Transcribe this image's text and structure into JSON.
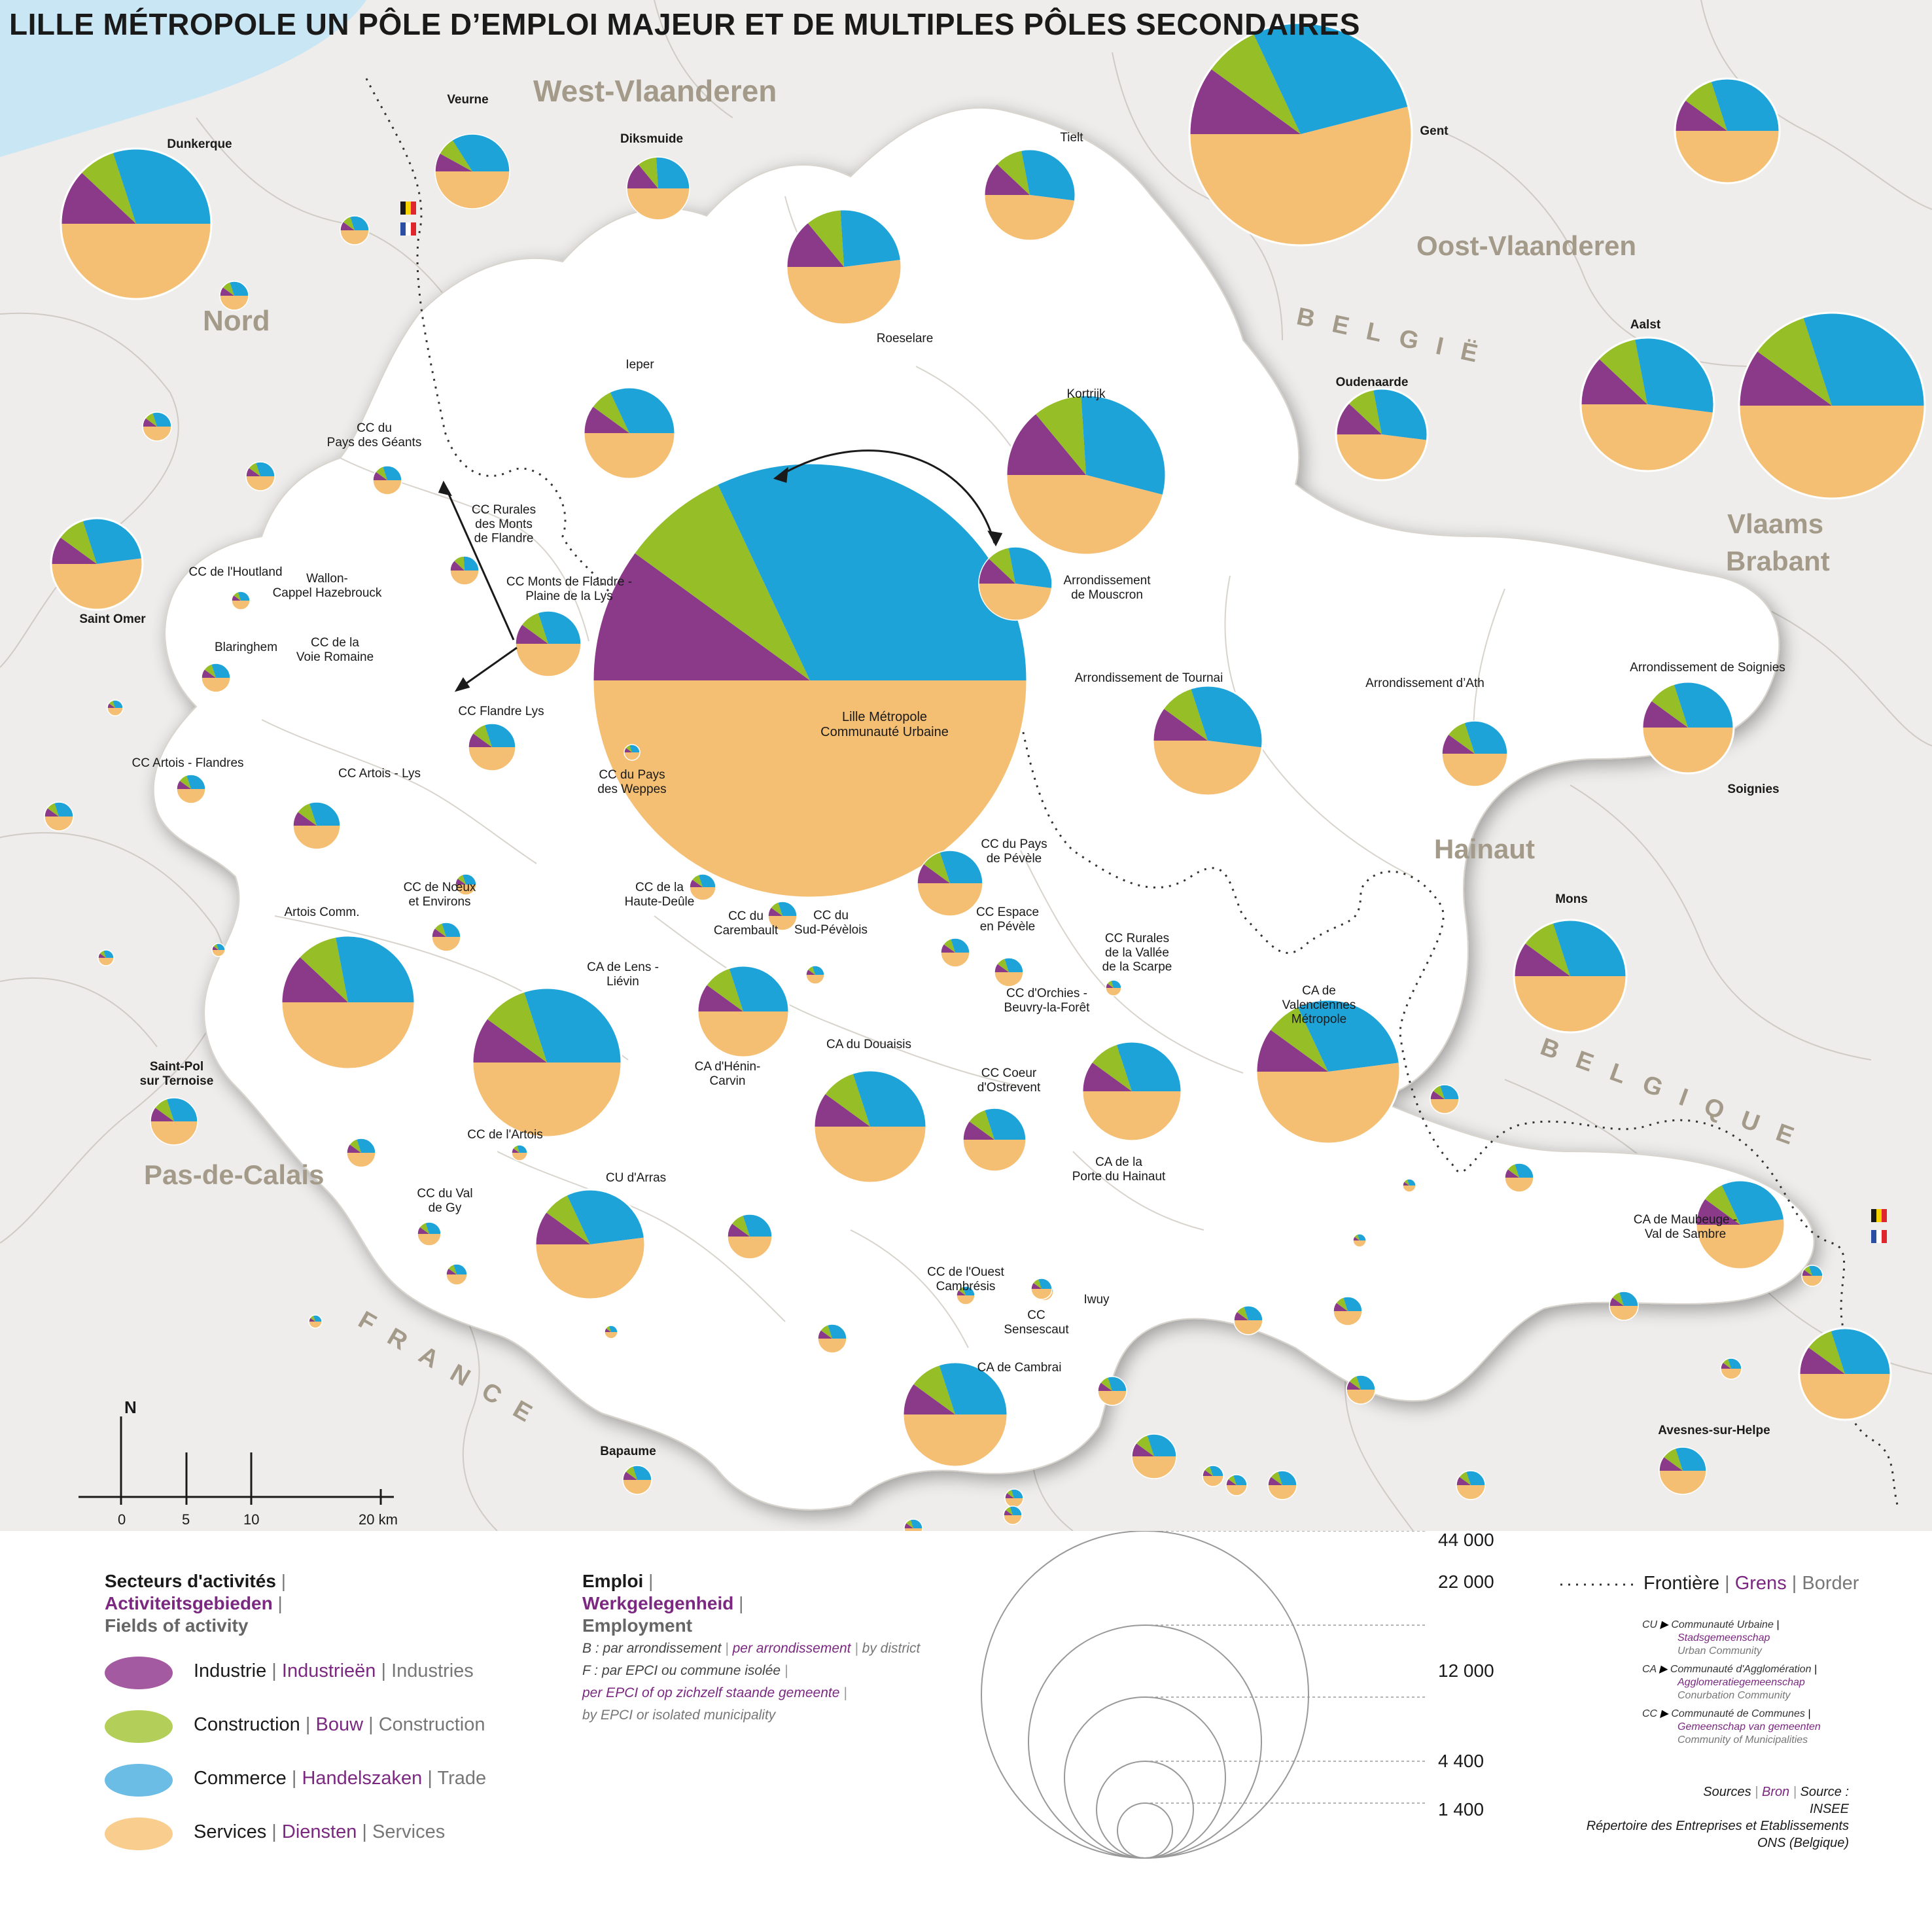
{
  "title": "LILLE MÉTROPOLE UN PÔLE D’EMPLOI MAJEUR ET DE MULTIPLES PÔLES SECONDAIRES",
  "colors": {
    "industry": "#8b3a8a",
    "construction": "#96be26",
    "trade": "#1ea3d8",
    "services": "#f5bf73",
    "border": "#333333",
    "land": "#eeedeb",
    "study": "#ffffff",
    "sea": "#c9e6f4"
  },
  "regions": [
    "West-Vlaanderen",
    "Oost-Vlaanderen",
    "Nord",
    "Vlaams",
    "Brabant",
    "Hainaut",
    "Pas-de-Calais"
  ],
  "countries": {
    "be_nl": "BELGIË",
    "be_fr": "BELGIQUE",
    "fr": "FRANCE"
  },
  "north": "N",
  "scale_ticks": [
    "0",
    "5",
    "10",
    "20 km"
  ],
  "poles": [
    {
      "name": "Lille Métropole\nCommunauté Urbaine",
      "bold": false,
      "shares": [
        10,
        8,
        32,
        50
      ]
    },
    {
      "name": "Gent",
      "bold": true,
      "shares": [
        10,
        8,
        28,
        54
      ]
    },
    {
      "name": "Dunkerque",
      "bold": true,
      "shares": [
        12,
        8,
        30,
        50
      ]
    },
    {
      "name": "Veurne",
      "bold": true,
      "shares": [
        8,
        8,
        34,
        50
      ]
    },
    {
      "name": "Diksmuide",
      "bold": true,
      "shares": [
        14,
        10,
        26,
        50
      ]
    },
    {
      "name": "Tielt",
      "bold": false,
      "shares": [
        12,
        10,
        30,
        48
      ]
    },
    {
      "name": "Roeselare",
      "bold": false,
      "shares": [
        14,
        10,
        24,
        52
      ]
    },
    {
      "name": "Ieper",
      "bold": false,
      "shares": [
        10,
        8,
        32,
        50
      ]
    },
    {
      "name": "Kortrijk",
      "bold": false,
      "shares": [
        14,
        10,
        30,
        46
      ]
    },
    {
      "name": "Oudenaarde",
      "bold": true,
      "shares": [
        12,
        10,
        30,
        48
      ]
    },
    {
      "name": "Aalst",
      "bold": true,
      "shares": [
        12,
        10,
        30,
        48
      ]
    },
    {
      "name": "Arrondissement\nde Mouscron",
      "bold": false,
      "shares": [
        12,
        10,
        30,
        48
      ]
    },
    {
      "name": "Arrondissement de Tournai",
      "bold": false,
      "shares": [
        10,
        10,
        32,
        48
      ]
    },
    {
      "name": "Arrondissement d’Ath",
      "bold": false,
      "shares": [
        10,
        10,
        30,
        50
      ]
    },
    {
      "name": "Arrondissement de Soignies",
      "bold": false,
      "shares": [
        10,
        10,
        30,
        50
      ]
    },
    {
      "name": "Soignies",
      "bold": true,
      "shares": []
    },
    {
      "name": "Saint Omer",
      "bold": true,
      "shares": [
        10,
        10,
        28,
        52
      ]
    },
    {
      "name": "Dunkerque",
      "bold": true,
      "shares": []
    },
    {
      "name": "CC du\nPays des Géants",
      "bold": false,
      "shares": [
        10,
        10,
        30,
        50
      ]
    },
    {
      "name": "CC Rurales\ndes Monts\nde Flandre",
      "bold": false,
      "shares": [
        12,
        12,
        26,
        50
      ]
    },
    {
      "name": "CC Monts de Flandre -\nPlaine de la Lys",
      "bold": false,
      "shares": [
        10,
        10,
        30,
        50
      ]
    },
    {
      "name": "CC de l'Houtland",
      "bold": false,
      "shares": [
        10,
        10,
        30,
        50
      ]
    },
    {
      "name": "Wallon-\nCappel Hazebrouck",
      "bold": false,
      "shares": []
    },
    {
      "name": "Blaringhem",
      "bold": false,
      "shares": []
    },
    {
      "name": "CC de la\nVoie Romaine",
      "bold": false,
      "shares": []
    },
    {
      "name": "CC Flandre Lys",
      "bold": false,
      "shares": [
        10,
        10,
        30,
        50
      ]
    },
    {
      "name": "CC Artois - Flandres",
      "bold": false,
      "shares": [
        10,
        10,
        30,
        50
      ]
    },
    {
      "name": "CC Artois - Lys",
      "bold": false,
      "shares": [
        10,
        10,
        30,
        50
      ]
    },
    {
      "name": "CC du Pays\ndes Weppes",
      "bold": false,
      "shares": [
        10,
        10,
        30,
        50
      ]
    },
    {
      "name": "CC du Pays\nde Pévèle",
      "bold": false,
      "shares": [
        10,
        10,
        30,
        50
      ]
    },
    {
      "name": "CC de Nœux\net Environs",
      "bold": false,
      "shares": [
        10,
        10,
        30,
        50
      ]
    },
    {
      "name": "Artois Comm.",
      "bold": false,
      "shares": [
        12,
        10,
        28,
        50
      ]
    },
    {
      "name": "CC de la\nHaute-Deûle",
      "bold": false,
      "shares": [
        10,
        10,
        30,
        50
      ]
    },
    {
      "name": "CC du\nCarembault",
      "bold": false,
      "shares": [
        10,
        10,
        30,
        50
      ]
    },
    {
      "name": "CC du\nSud-Pévèlois",
      "bold": false,
      "shares": [
        10,
        10,
        30,
        50
      ]
    },
    {
      "name": "CC Espace\nen Pévèle",
      "bold": false,
      "shares": [
        10,
        10,
        30,
        50
      ]
    },
    {
      "name": "CC Rurales\nde la Vallée\nde la Scarpe",
      "bold": false,
      "shares": [
        10,
        10,
        30,
        50
      ]
    },
    {
      "name": "CA de\nValenciennes\nMétropole",
      "bold": false,
      "shares": [
        10,
        8,
        30,
        52
      ]
    },
    {
      "name": "CA de Lens -\nLiévin",
      "bold": false,
      "shares": [
        10,
        10,
        30,
        50
      ]
    },
    {
      "name": "CC d'Orchies -\nBeuvry-la-Forêt",
      "bold": false,
      "shares": [
        10,
        10,
        30,
        50
      ]
    },
    {
      "name": "Mons",
      "bold": true,
      "shares": [
        10,
        10,
        30,
        50
      ]
    },
    {
      "name": "Hainaut",
      "bold": true,
      "shares": []
    },
    {
      "name": "CA du Douaisis",
      "bold": false,
      "shares": [
        10,
        10,
        30,
        50
      ]
    },
    {
      "name": "CA d'Hénin-\nCarvin",
      "bold": false,
      "shares": [
        10,
        10,
        30,
        50
      ]
    },
    {
      "name": "CC Coeur\nd'Ostrevent",
      "bold": false,
      "shares": [
        10,
        10,
        30,
        50
      ]
    },
    {
      "name": "CA de la\nPorte du Hainaut",
      "bold": false,
      "shares": [
        10,
        10,
        30,
        50
      ]
    },
    {
      "name": "Saint-Pol\nsur Ternoise",
      "bold": true,
      "shares": [
        10,
        10,
        30,
        50
      ]
    },
    {
      "name": "CC de l'Artois",
      "bold": false,
      "shares": [
        10,
        10,
        30,
        50
      ]
    },
    {
      "name": "CC du Val\nde Gy",
      "bold": false,
      "shares": [
        10,
        10,
        30,
        50
      ]
    },
    {
      "name": "CU d'Arras",
      "bold": false,
      "shares": [
        10,
        8,
        30,
        52
      ]
    },
    {
      "name": "CA de Maubeuge -\nVal de Sambre",
      "bold": false,
      "shares": [
        10,
        8,
        30,
        52
      ]
    },
    {
      "name": "CC de l'Ouest\nCambrésis",
      "bold": false,
      "shares": [
        10,
        10,
        30,
        50
      ]
    },
    {
      "name": "CC\nSensescaut",
      "bold": false,
      "shares": [
        10,
        10,
        30,
        50
      ]
    },
    {
      "name": "Iwuy",
      "bold": false,
      "shares": [
        10,
        10,
        30,
        50
      ]
    },
    {
      "name": "CA de Cambrai",
      "bold": false,
      "shares": [
        10,
        10,
        30,
        50
      ]
    },
    {
      "name": "Bapaume",
      "bold": true,
      "shares": [
        10,
        10,
        30,
        50
      ]
    },
    {
      "name": "Avesnes-sur-Helpe",
      "bold": true,
      "shares": [
        10,
        10,
        30,
        50
      ]
    }
  ],
  "legend": {
    "sectors": {
      "title_fr": "Secteurs d'activités",
      "title_nl": "Activiteitsgebieden",
      "title_en": "Fields of activity",
      "items": [
        {
          "fr": "Industrie",
          "nl": "Industrieën",
          "en": "Industries",
          "key": "industry"
        },
        {
          "fr": "Construction",
          "nl": "Bouw",
          "en": "Construction",
          "key": "construction"
        },
        {
          "fr": "Commerce",
          "nl": "Handelszaken",
          "en": "Trade",
          "key": "trade"
        },
        {
          "fr": "Services",
          "nl": "Diensten",
          "en": "Services",
          "key": "services"
        }
      ]
    },
    "employment": {
      "title_fr": "Emploi",
      "title_nl": "Werkgelegenheid",
      "title_en": "Employment",
      "note_b_fr": "B : par arrondissement",
      "note_b_nl": "per arrondissement",
      "note_b_en": "by district",
      "note_f_fr": "F : par EPCI ou commune isolée",
      "note_f_nl": "per EPCI of op zichzelf staande gemeente",
      "note_f_en": "by EPCI or isolated municipality"
    },
    "sizes": [
      "44 000",
      "22 000",
      "12 000",
      "4 400",
      "1 400"
    ],
    "border": {
      "fr": "Frontière",
      "nl": "Grens",
      "en": "Border"
    },
    "abbreviations": [
      {
        "code": "CU",
        "fr": "Communauté Urbaine",
        "nl": "Stadsgemeenschap",
        "en": "Urban Community"
      },
      {
        "code": "CA",
        "fr": "Communauté d'Agglomération",
        "nl": "Agglomeratiegemeenschap",
        "en": "Conurbation Community"
      },
      {
        "code": "CC",
        "fr": "Communauté de Communes",
        "nl": "Gemeenschap van gemeenten",
        "en": "Community of Municipalities"
      }
    ],
    "sources": {
      "fr": "Sources",
      "nl": "Bron",
      "en": "Source :",
      "lines": [
        "INSEE",
        "Répertoire des Entreprises et Etablissements",
        "ONS (Belgique)"
      ]
    }
  }
}
